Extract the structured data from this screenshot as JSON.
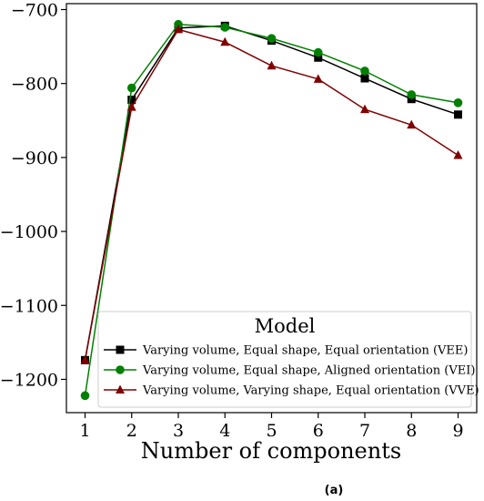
{
  "chart_data": {
    "type": "line",
    "title": "",
    "xlabel": "Number of components",
    "ylabel": "",
    "x": [
      1,
      2,
      3,
      4,
      5,
      6,
      7,
      8,
      9
    ],
    "xticks": [
      "1",
      "2",
      "3",
      "4",
      "5",
      "6",
      "7",
      "8",
      "9"
    ],
    "yticks": [
      -700,
      -800,
      -900,
      -1000,
      -1100,
      -1200
    ],
    "ytick_labels": [
      "−700",
      "−800",
      "−900",
      "−1000",
      "−1100",
      "−1200"
    ],
    "xlim": [
      0.6,
      9.4
    ],
    "ylim": [
      -1245,
      -692
    ],
    "grid": false,
    "legend": {
      "title": "Model",
      "placement": "lower-right"
    },
    "series": [
      {
        "name": "Varying volume, Equal shape, Equal orientation (VEE)",
        "color": "#000000",
        "marker": "square",
        "values": [
          -1174,
          -822,
          -725,
          -722,
          -742,
          -765,
          -793,
          -821,
          -842
        ]
      },
      {
        "name": "Varying volume, Equal shape, Aligned orientation (VEI)",
        "color": "#008000",
        "marker": "circle",
        "values": [
          -1222,
          -806,
          -720,
          -724,
          -739,
          -758,
          -783,
          -815,
          -826
        ]
      },
      {
        "name": "Varying volume, Varying shape, Equal orientation (VVE)",
        "color": "#800000",
        "marker": "triangle",
        "values": [
          -1174,
          -832,
          -727,
          -744,
          -776,
          -794,
          -835,
          -856,
          -897
        ]
      }
    ],
    "caption": "(a)"
  }
}
